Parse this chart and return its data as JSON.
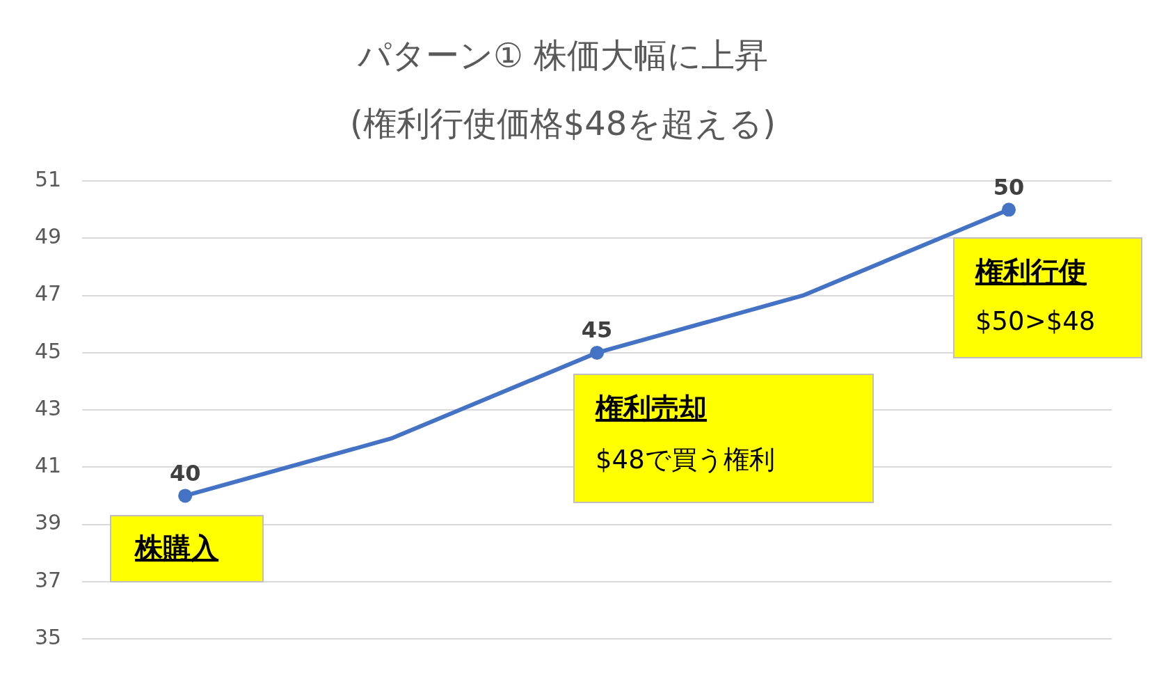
{
  "chart_data": {
    "type": "line",
    "title": "パターン① 株価大幅に上昇",
    "subtitle": "(権利行使価格$48を超える)",
    "categories": [
      null,
      null,
      null,
      null,
      null
    ],
    "series": [
      {
        "color": "#4472c4",
        "values": [
          40,
          42,
          45,
          47,
          50
        ],
        "value_labels": [
          "40",
          null,
          "45",
          null,
          "50"
        ]
      }
    ],
    "ylim": [
      35,
      51
    ],
    "yticks": [
      35,
      37,
      39,
      41,
      43,
      45,
      47,
      49,
      51
    ],
    "grid": "y",
    "marker": "circle",
    "line_style": "solid",
    "legend": false,
    "tick_labels": "y",
    "annotations": [
      "株購入",
      "権利売却",
      "$48で買う権利",
      "権利行使",
      "$50>$48"
    ]
  }
}
